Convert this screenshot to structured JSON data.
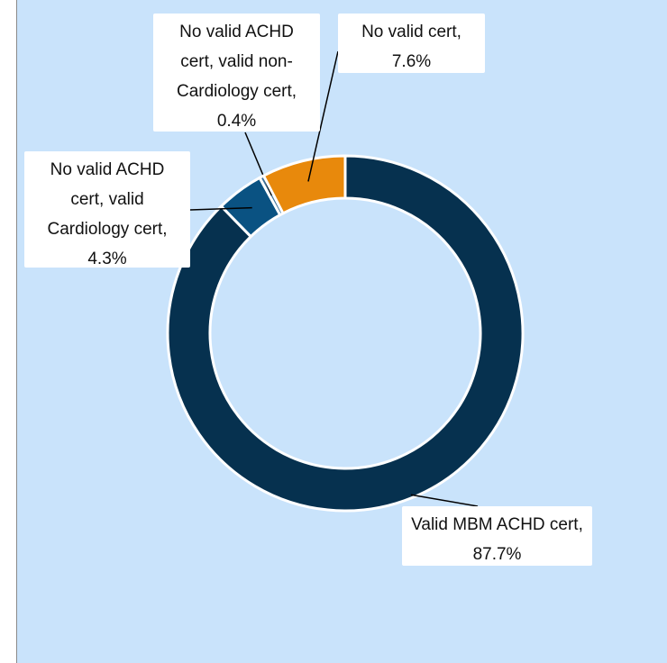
{
  "chart_data": {
    "type": "donut",
    "categories": [
      "Valid MBM ACHD cert, 87.7%",
      "No valid ACHD cert, valid Cardiology cert, 4.3%",
      "No valid ACHD cert, valid non-Cardiology cert, 0.4%",
      "No valid cert, 7.6%"
    ],
    "values": [
      87.7,
      4.3,
      0.4,
      7.6
    ],
    "colors": [
      "#06314f",
      "#0a5282",
      "#3a6f99",
      "#e8890c"
    ]
  }
}
